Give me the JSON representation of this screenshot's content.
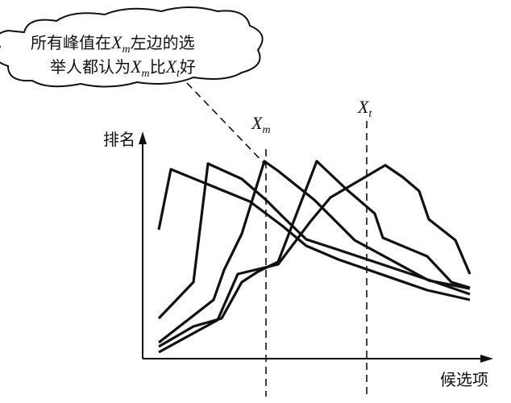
{
  "callout": {
    "line1": [
      "所有峰值在",
      "X",
      "m",
      "左边的选"
    ],
    "line2": [
      "举人都认为",
      "X",
      "m",
      "比",
      "X",
      "t",
      "好"
    ]
  },
  "markers": [
    {
      "label": "X",
      "sub": "m"
    },
    {
      "label": "X",
      "sub": "t"
    }
  ],
  "axes": {
    "y_label": "排名",
    "x_label": "候选项"
  }
}
